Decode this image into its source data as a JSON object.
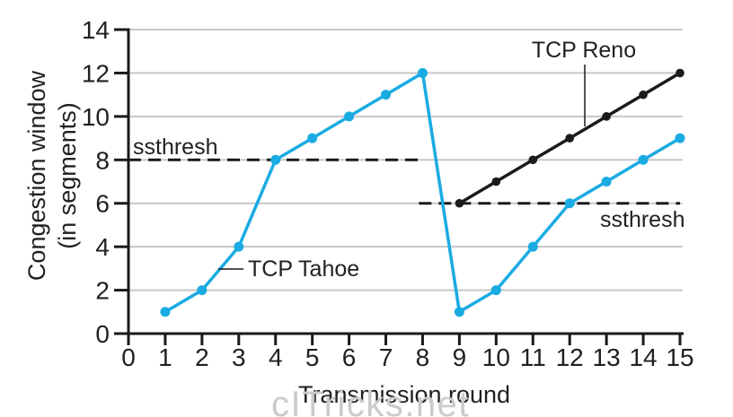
{
  "page": {
    "background": "#ffffff"
  },
  "watermark": {
    "text": "cITricks.net",
    "color": "#cacbcc"
  },
  "chart_data": {
    "type": "line",
    "title": "",
    "xlabel": "Transmission round",
    "ylabel": "Congestion window (in segments)",
    "ylabel_lines": [
      "Congestion window",
      "(in segments)"
    ],
    "xlim": [
      0,
      15
    ],
    "ylim": [
      0,
      14
    ],
    "x_ticks": [
      0,
      1,
      2,
      3,
      4,
      5,
      6,
      7,
      8,
      9,
      10,
      11,
      12,
      13,
      14,
      15
    ],
    "y_ticks": [
      0,
      2,
      4,
      6,
      8,
      10,
      12,
      14
    ],
    "grid": {
      "horizontal": true,
      "vertical": false,
      "y_values": [
        2,
        4,
        6,
        8,
        10,
        12,
        14
      ],
      "color": "#c6c7c9"
    },
    "axis_color": "#1a1a1a",
    "text_color": "#231f20",
    "legend_position": "none",
    "series": [
      {
        "name": "TCP Tahoe",
        "color": "#1aabe2",
        "marker": "circle",
        "x": [
          1,
          2,
          3,
          4,
          5,
          6,
          7,
          8,
          9,
          10,
          11,
          12,
          13,
          14,
          15
        ],
        "y": [
          1,
          2,
          4,
          8,
          9,
          10,
          11,
          12,
          1,
          2,
          4,
          6,
          7,
          8,
          9
        ]
      },
      {
        "name": "TCP Reno",
        "color": "#1b1b1b",
        "marker": "circle",
        "x": [
          9,
          10,
          11,
          12,
          13,
          14,
          15
        ],
        "y": [
          6,
          7,
          8,
          9,
          10,
          11,
          12
        ]
      }
    ],
    "thresholds": [
      {
        "label": "ssthresh",
        "y": 8,
        "x_start": 0,
        "x_end": 8,
        "label_position": "above-left"
      },
      {
        "label": "ssthresh",
        "y": 6,
        "x_start": 7.9,
        "x_end": 15,
        "label_position": "below-right"
      }
    ],
    "annotations": [
      {
        "text": "TCP Reno",
        "series": "TCP Reno"
      },
      {
        "text": "TCP Tahoe",
        "series": "TCP Tahoe"
      }
    ]
  }
}
